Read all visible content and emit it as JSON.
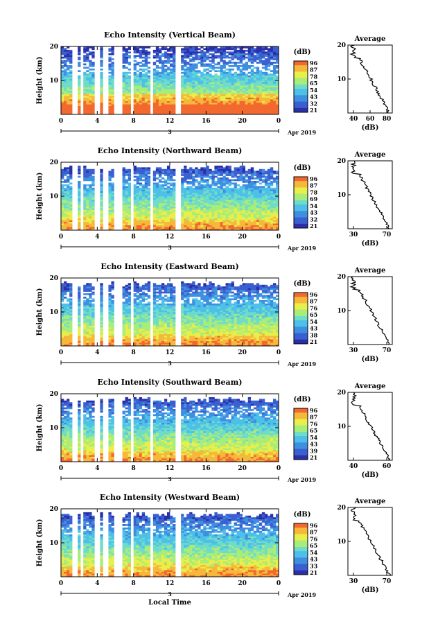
{
  "chart_data": [
    {
      "type": "heatmap",
      "title": "Echo Intensity (Vertical Beam)",
      "ylabel": "Height (km)",
      "xlabel": "",
      "date_label": "3",
      "month_label": "Apr 2019",
      "x_ticks": [
        "0",
        "4",
        "8",
        "12",
        "16",
        "20",
        "0"
      ],
      "y_ticks": [
        "10",
        "20"
      ],
      "ylim": [
        0,
        20
      ],
      "xlim": [
        0,
        24
      ],
      "colorbar": {
        "unit": "(dB)",
        "ticks": [
          "96",
          "87",
          "78",
          "65",
          "54",
          "43",
          "32",
          "21"
        ]
      },
      "average": {
        "title": "Average",
        "xlabel": "(dB)",
        "x_ticks": [
          "40",
          "60",
          "80"
        ],
        "y_ticks": [
          "10",
          "20"
        ]
      }
    },
    {
      "type": "heatmap",
      "title": "Echo Intensity (Northward Beam)",
      "ylabel": "Height (km)",
      "xlabel": "",
      "date_label": "3",
      "month_label": "Apr 2019",
      "x_ticks": [
        "0",
        "4",
        "8",
        "12",
        "16",
        "20",
        "0"
      ],
      "y_ticks": [
        "10",
        "20"
      ],
      "ylim": [
        0,
        20
      ],
      "xlim": [
        0,
        24
      ],
      "colorbar": {
        "unit": "(dB)",
        "ticks": [
          "96",
          "87",
          "78",
          "69",
          "54",
          "43",
          "32",
          "21"
        ]
      },
      "average": {
        "title": "Average",
        "xlabel": "(dB)",
        "x_ticks": [
          "30",
          "70"
        ],
        "y_ticks": [
          "10",
          "20"
        ]
      }
    },
    {
      "type": "heatmap",
      "title": "Echo Intensity (Eastward Beam)",
      "ylabel": "Height (km)",
      "xlabel": "",
      "date_label": "3",
      "month_label": "Apr 2019",
      "x_ticks": [
        "0",
        "4",
        "8",
        "12",
        "16",
        "20",
        "0"
      ],
      "y_ticks": [
        "10",
        "20"
      ],
      "ylim": [
        0,
        20
      ],
      "xlim": [
        0,
        24
      ],
      "colorbar": {
        "unit": "(dB)",
        "ticks": [
          "96",
          "87",
          "76",
          "65",
          "54",
          "43",
          "38",
          "21"
        ]
      },
      "average": {
        "title": "Average",
        "xlabel": "(dB)",
        "x_ticks": [
          "30",
          "70"
        ],
        "y_ticks": [
          "10",
          "20"
        ]
      }
    },
    {
      "type": "heatmap",
      "title": "Echo Intensity (Southward Beam)",
      "ylabel": "Height (km)",
      "xlabel": "",
      "date_label": "3",
      "month_label": "Apr 2019",
      "x_ticks": [
        "0",
        "4",
        "8",
        "12",
        "16",
        "20",
        "0"
      ],
      "y_ticks": [
        "10",
        "20"
      ],
      "ylim": [
        0,
        20
      ],
      "xlim": [
        0,
        24
      ],
      "colorbar": {
        "unit": "(dB)",
        "ticks": [
          "96",
          "87",
          "76",
          "65",
          "54",
          "43",
          "39",
          "21"
        ]
      },
      "average": {
        "title": "Average",
        "xlabel": "(dB)",
        "x_ticks": [
          "40",
          "60"
        ],
        "y_ticks": [
          "10",
          "20"
        ]
      }
    },
    {
      "type": "heatmap",
      "title": "Echo Intensity (Westward Beam)",
      "ylabel": "Height (km)",
      "xlabel": "Local Time",
      "date_label": "3",
      "month_label": "Apr 2019",
      "x_ticks": [
        "0",
        "4",
        "8",
        "12",
        "16",
        "20",
        "0"
      ],
      "y_ticks": [
        "10",
        "20"
      ],
      "ylim": [
        0,
        20
      ],
      "xlim": [
        0,
        24
      ],
      "colorbar": {
        "unit": "(dB)",
        "ticks": [
          "96",
          "87",
          "76",
          "65",
          "54",
          "43",
          "33",
          "21"
        ]
      },
      "average": {
        "title": "Average",
        "xlabel": "(dB)",
        "x_ticks": [
          "30",
          "70"
        ],
        "y_ticks": [
          "10",
          "20"
        ]
      }
    }
  ],
  "palette": [
    "#2b2fa8",
    "#3a5fd0",
    "#3f8fe0",
    "#4cc0e8",
    "#6fdcc8",
    "#a8ec7a",
    "#e8ee4a",
    "#f6b83a",
    "#f2682e"
  ]
}
